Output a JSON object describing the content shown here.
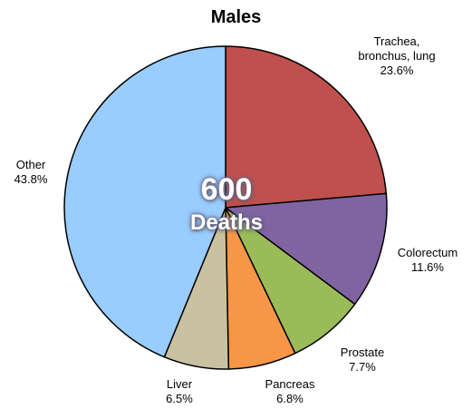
{
  "chart_data": {
    "type": "pie",
    "title": "Males",
    "center_value": "600",
    "center_caption": "Deaths",
    "slices": [
      {
        "name": "Trachea, bronchus, lung",
        "label_lines": [
          "Trachea,",
          "bronchus, lung"
        ],
        "percent_label": "23.6%",
        "value": 23.6,
        "color": "#c0504d"
      },
      {
        "name": "Colorectum",
        "label_lines": [
          "Colorectum"
        ],
        "percent_label": "11.6%",
        "value": 11.6,
        "color": "#8064a2"
      },
      {
        "name": "Prostate",
        "label_lines": [
          "Prostate"
        ],
        "percent_label": "7.7%",
        "value": 7.7,
        "color": "#9bbb59"
      },
      {
        "name": "Pancreas",
        "label_lines": [
          "Pancreas"
        ],
        "percent_label": "6.8%",
        "value": 6.8,
        "color": "#f79646"
      },
      {
        "name": "Liver",
        "label_lines": [
          "Liver"
        ],
        "percent_label": "6.5%",
        "value": 6.5,
        "color": "#c9c1a0"
      },
      {
        "name": "Other",
        "label_lines": [
          "Other"
        ],
        "percent_label": "43.8%",
        "value": 43.8,
        "color": "#99ccff"
      }
    ]
  }
}
